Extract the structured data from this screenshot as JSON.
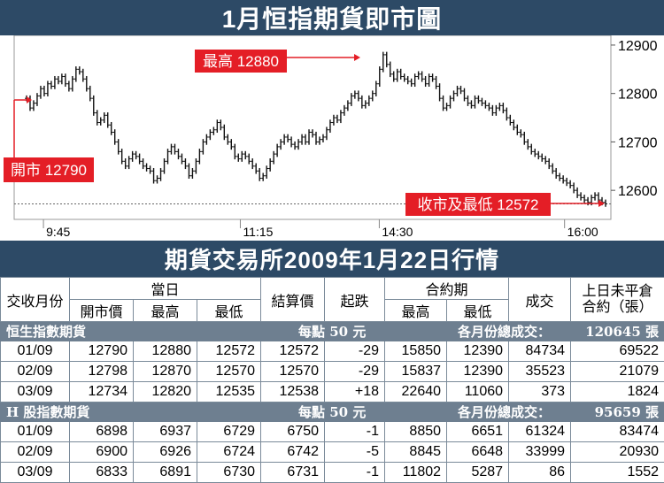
{
  "header": {
    "title": "1月恒指期貨即市圖"
  },
  "chart_data": {
    "type": "candlestick-line",
    "title": "1月恒指期貨即市圖",
    "y_ticks": [
      12600,
      12700,
      12800,
      12900
    ],
    "ylim": [
      12540,
      12920
    ],
    "x_ticks": [
      "9:45",
      "11:15",
      "14:30",
      "16:00"
    ],
    "baseline": 12572,
    "annotations": {
      "open": {
        "label": "開市 12790",
        "value": 12790
      },
      "high": {
        "label": "最高 12880",
        "value": 12880
      },
      "close_low": {
        "label": "收市及最低 12572",
        "value": 12572
      }
    },
    "values": [
      12790,
      12770,
      12780,
      12795,
      12810,
      12800,
      12820,
      12815,
      12830,
      12825,
      12835,
      12820,
      12810,
      12830,
      12850,
      12845,
      12830,
      12810,
      12790,
      12760,
      12740,
      12745,
      12755,
      12735,
      12720,
      12700,
      12680,
      12660,
      12650,
      12665,
      12675,
      12670,
      12660,
      12650,
      12645,
      12640,
      12620,
      12625,
      12640,
      12660,
      12680,
      12690,
      12680,
      12670,
      12660,
      12650,
      12630,
      12640,
      12660,
      12680,
      12700,
      12710,
      12720,
      12725,
      12740,
      12730,
      12710,
      12700,
      12690,
      12670,
      12665,
      12675,
      12670,
      12660,
      12650,
      12640,
      12625,
      12630,
      12645,
      12660,
      12675,
      12690,
      12700,
      12710,
      12705,
      12695,
      12690,
      12700,
      12710,
      12700,
      12720,
      12715,
      12700,
      12705,
      12710,
      12725,
      12740,
      12750,
      12745,
      12760,
      12770,
      12780,
      12795,
      12800,
      12790,
      12775,
      12780,
      12790,
      12800,
      12820,
      12850,
      12880,
      12860,
      12840,
      12830,
      12845,
      12835,
      12830,
      12825,
      12820,
      12835,
      12840,
      12830,
      12820,
      12835,
      12830,
      12815,
      12790,
      12770,
      12775,
      12790,
      12800,
      12810,
      12805,
      12790,
      12780,
      12775,
      12790,
      12785,
      12780,
      12775,
      12770,
      12760,
      12770,
      12775,
      12765,
      12750,
      12740,
      12730,
      12720,
      12715,
      12700,
      12690,
      12680,
      12675,
      12670,
      12665,
      12660,
      12650,
      12640,
      12630,
      12625,
      12620,
      12615,
      12610,
      12600,
      12590,
      12585,
      12580,
      12575,
      12585,
      12590,
      12580,
      12575,
      12572
    ]
  },
  "table_title": "期貨交易所2009年1月22日行情",
  "table": {
    "h_month": "交收月份",
    "h_day": "當日",
    "h_open": "開市價",
    "h_high": "最高",
    "h_low": "最低",
    "h_settle": "結算價",
    "h_change": "起跌",
    "h_contract": "合約期",
    "h_c_high": "最高",
    "h_c_low": "最低",
    "h_volume": "成交",
    "h_oi": "上日未平倉合約（張）",
    "groups": [
      {
        "name": "恒生指數期貨",
        "per_point": "每點 50 元",
        "total_label": "各月份總成交：",
        "total_value": "120645 張",
        "rows": [
          [
            "01/09",
            "12790",
            "12880",
            "12572",
            "12572",
            "-29",
            "15850",
            "12390",
            "84734",
            "69522"
          ],
          [
            "02/09",
            "12798",
            "12870",
            "12570",
            "12570",
            "-29",
            "15837",
            "12390",
            "35523",
            "21079"
          ],
          [
            "03/09",
            "12734",
            "12820",
            "12535",
            "12538",
            "+18",
            "22640",
            "11060",
            "373",
            "1824"
          ]
        ]
      },
      {
        "name": "H 股指數期貨",
        "per_point": "每點 50 元",
        "total_label": "各月份總成交：",
        "total_value": "95659 張",
        "rows": [
          [
            "01/09",
            "6898",
            "6937",
            "6729",
            "6750",
            "-1",
            "8850",
            "6651",
            "61324",
            "83474"
          ],
          [
            "02/09",
            "6900",
            "6926",
            "6724",
            "6742",
            "-5",
            "8845",
            "6648",
            "33999",
            "20930"
          ],
          [
            "03/09",
            "6833",
            "6891",
            "6730",
            "6731",
            "-1",
            "11802",
            "5287",
            "86",
            "1552"
          ]
        ]
      }
    ]
  },
  "colors": {
    "annotation": "#e41e26",
    "title_bg": "#2d4a66",
    "group_bg": "#6e7f90"
  }
}
